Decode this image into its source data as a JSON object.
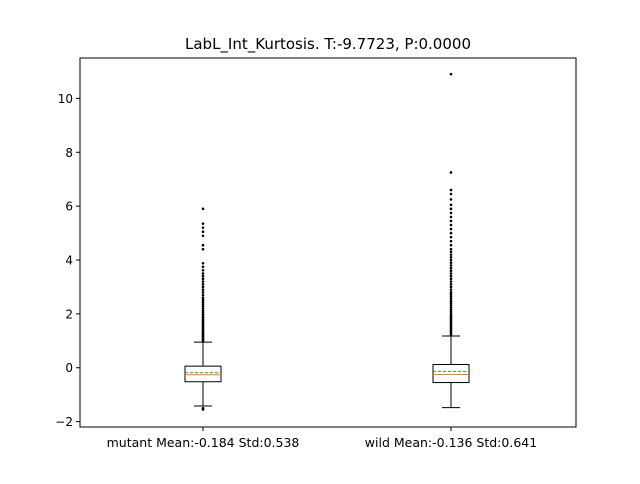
{
  "chart_data": {
    "type": "box",
    "title": "LabL_Int_Kurtosis. T:-9.7723, P:0.0000",
    "xlabel": "",
    "ylabel": "",
    "ylim": [
      -2.2,
      11.5
    ],
    "yticks": [
      {
        "value": -2,
        "label": "−2"
      },
      {
        "value": 0,
        "label": "0"
      },
      {
        "value": 2,
        "label": "2"
      },
      {
        "value": 4,
        "label": "4"
      },
      {
        "value": 6,
        "label": "6"
      },
      {
        "value": 8,
        "label": "8"
      },
      {
        "value": 10,
        "label": "10"
      }
    ],
    "grid": false,
    "colors": {
      "median": "#ff7f0e",
      "mean": "#2ca02c",
      "box": "#000000"
    },
    "categories": [
      "mutant Mean:-0.184 Std:0.538",
      "wild Mean:-0.136 Std:0.641"
    ],
    "boxes": [
      {
        "label": "mutant Mean:-0.184 Std:0.538",
        "whisker_low": -1.42,
        "q1": -0.52,
        "median": -0.26,
        "mean": -0.184,
        "q3": 0.06,
        "whisker_high": 0.95,
        "fliers": [
          -1.5,
          -1.55,
          0.98,
          1.02,
          1.06,
          1.1,
          1.14,
          1.18,
          1.22,
          1.26,
          1.3,
          1.35,
          1.4,
          1.45,
          1.5,
          1.55,
          1.6,
          1.65,
          1.7,
          1.75,
          1.8,
          1.86,
          1.92,
          1.98,
          2.05,
          2.12,
          2.2,
          2.28,
          2.36,
          2.44,
          2.52,
          2.6,
          2.7,
          2.8,
          2.9,
          3.0,
          3.1,
          3.2,
          3.3,
          3.4,
          3.5,
          3.62,
          3.75,
          3.88,
          4.4,
          4.55,
          4.9,
          5.05,
          5.2,
          5.35,
          5.9
        ]
      },
      {
        "label": "wild Mean:-0.136 Std:0.641",
        "whisker_low": -1.48,
        "q1": -0.55,
        "median": -0.25,
        "mean": -0.136,
        "q3": 0.12,
        "whisker_high": 1.18,
        "fliers": [
          1.22,
          1.28,
          1.34,
          1.4,
          1.46,
          1.52,
          1.58,
          1.64,
          1.7,
          1.76,
          1.82,
          1.88,
          1.94,
          2.0,
          2.08,
          2.16,
          2.24,
          2.32,
          2.4,
          2.48,
          2.56,
          2.64,
          2.72,
          2.8,
          2.9,
          3.0,
          3.1,
          3.2,
          3.3,
          3.4,
          3.5,
          3.6,
          3.7,
          3.8,
          3.9,
          4.0,
          4.1,
          4.2,
          4.3,
          4.4,
          4.55,
          4.7,
          4.85,
          5.0,
          5.15,
          5.3,
          5.45,
          5.6,
          5.75,
          5.9,
          6.05,
          6.25,
          6.45,
          6.6,
          7.25,
          10.9
        ]
      }
    ]
  }
}
